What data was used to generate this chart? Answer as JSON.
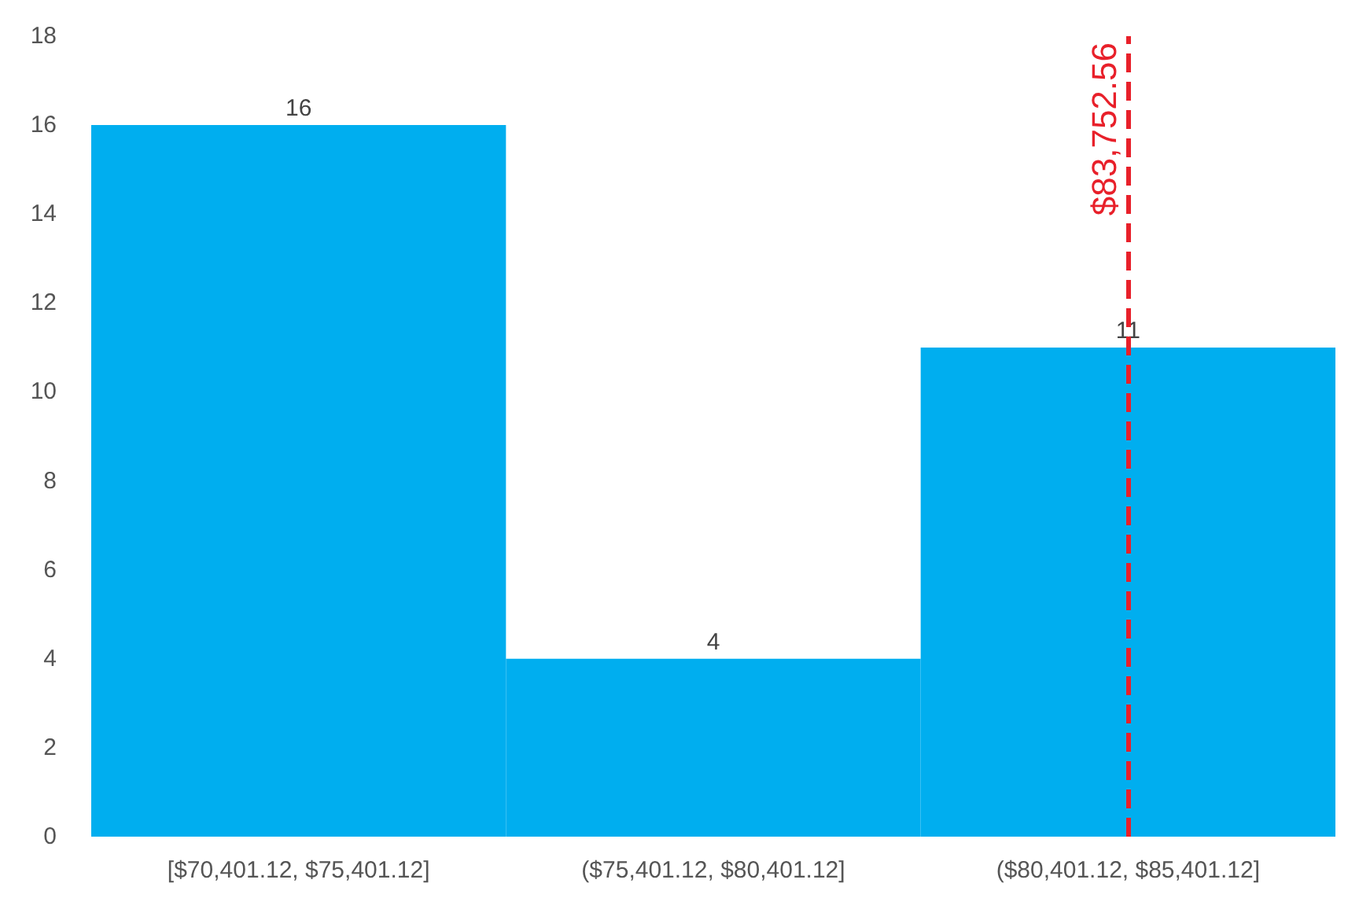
{
  "chart_data": {
    "type": "bar",
    "categories": [
      "[$70,401.12, $75,401.12]",
      "($75,401.12, $80,401.12]",
      "($80,401.12, $85,401.12]"
    ],
    "values": [
      16,
      4,
      11
    ],
    "color": "#00aeef",
    "data_labels": true,
    "ylim": [
      0,
      18
    ],
    "yticks": [
      0,
      2,
      4,
      6,
      8,
      10,
      12,
      14,
      16,
      18
    ],
    "ref_lines": [
      {
        "axis": "x",
        "value": "($80,401.12, $85,401.12]",
        "label": "$83,752.56",
        "color": "#e8202a",
        "line_style": "dashed"
      }
    ]
  }
}
